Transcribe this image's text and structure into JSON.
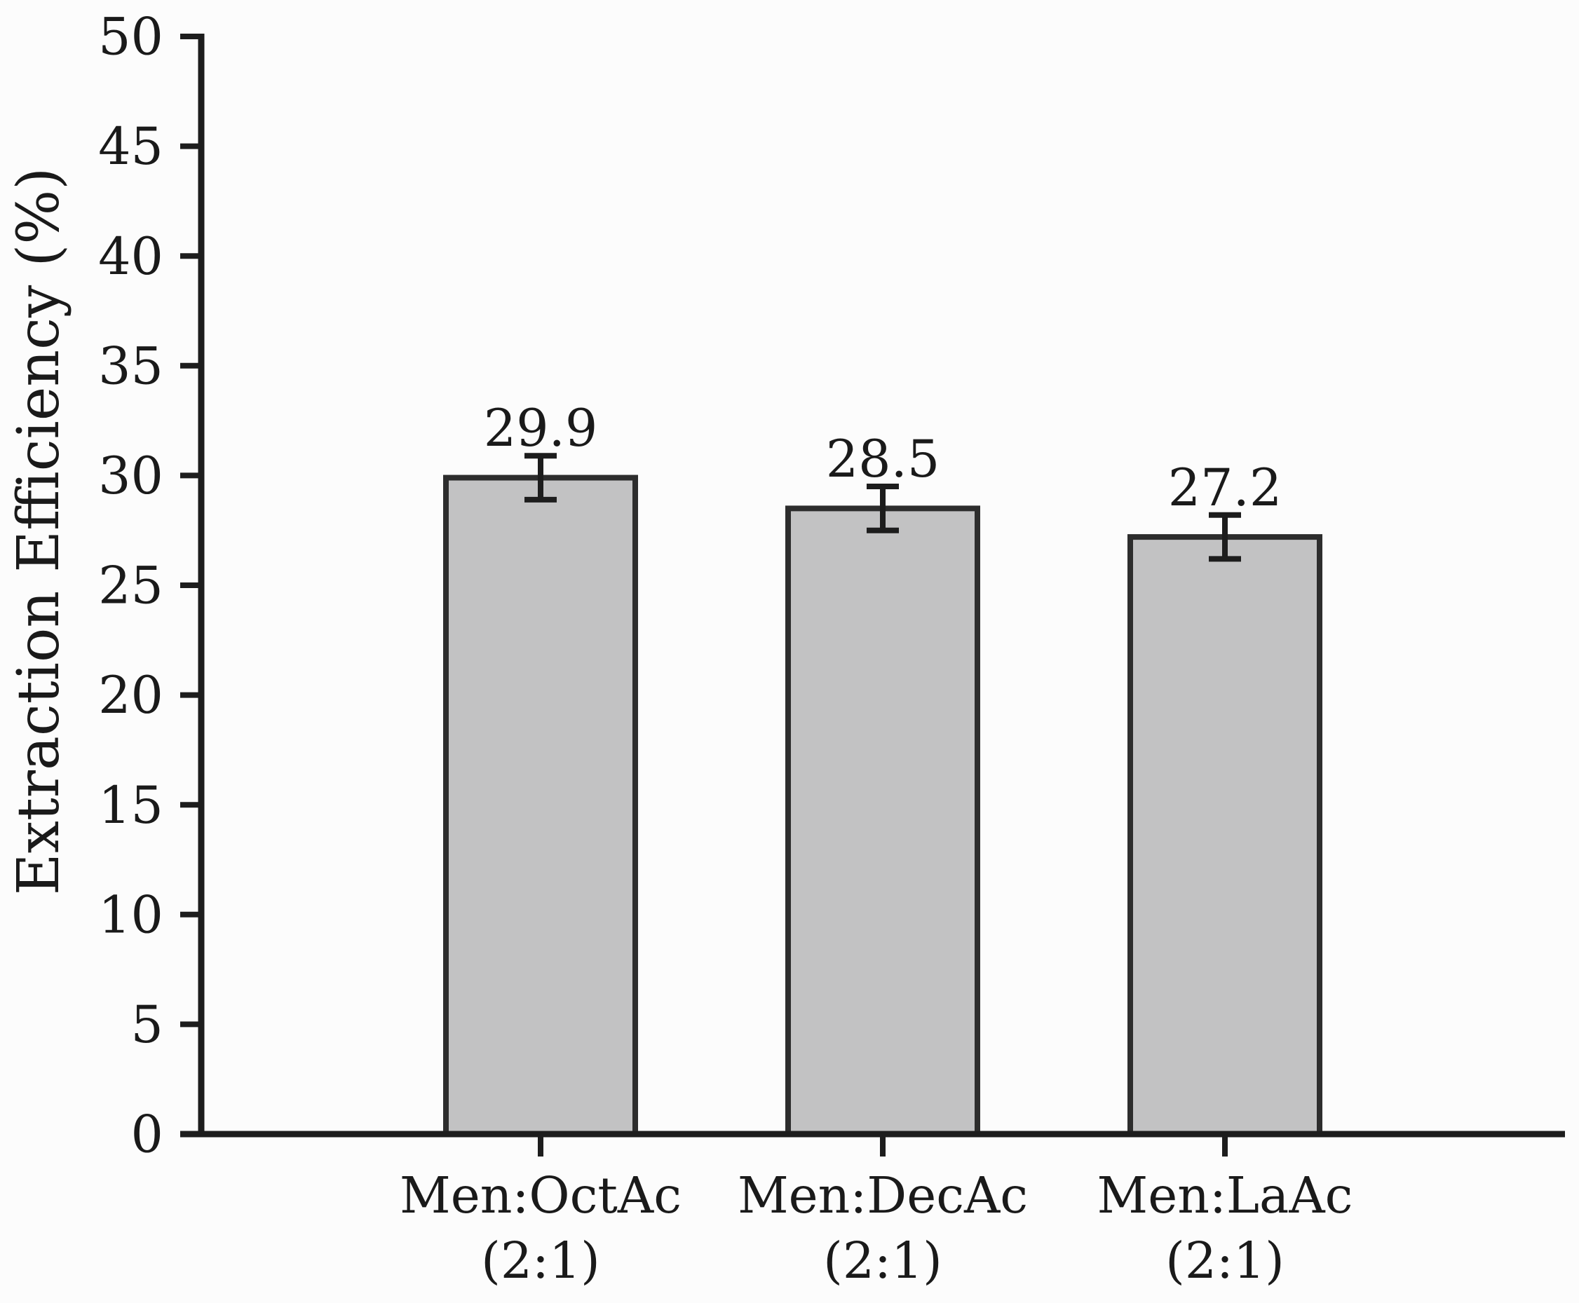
{
  "chart_data": {
    "type": "bar",
    "title": "",
    "ylabel": "Extraction Efficiency (%)",
    "xlabel": "",
    "ylim": [
      0,
      50
    ],
    "ytick_interval": 5,
    "ytick_labels": [
      "0",
      "5",
      "10",
      "15",
      "20",
      "25",
      "30",
      "35",
      "40",
      "45",
      "50"
    ],
    "grid": false,
    "legend": "none",
    "categories": [
      "Men:OctAc (2:1)",
      "Men:DecAc (2:1)",
      "Men:LaAc (2:1)"
    ],
    "category_lines": [
      [
        "Men:OctAc",
        "(2:1)"
      ],
      [
        "Men:DecAc",
        "(2:1)"
      ],
      [
        "Men:LaAc",
        "(2:1)"
      ]
    ],
    "series": [
      {
        "name": "Extraction Efficiency",
        "values": [
          29.9,
          28.5,
          27.2
        ],
        "errors": [
          1.0,
          1.0,
          1.0
        ],
        "value_labels": [
          "29.9",
          "28.5",
          "27.2"
        ]
      }
    ],
    "colors": {
      "bar_fill": "#c2c2c3",
      "bar_border": "#2d2d2d",
      "error_bar": "#1d1d1d",
      "axis": "#1d1d1d",
      "text": "#1a1a1a",
      "background": "#fcfcfc"
    }
  }
}
